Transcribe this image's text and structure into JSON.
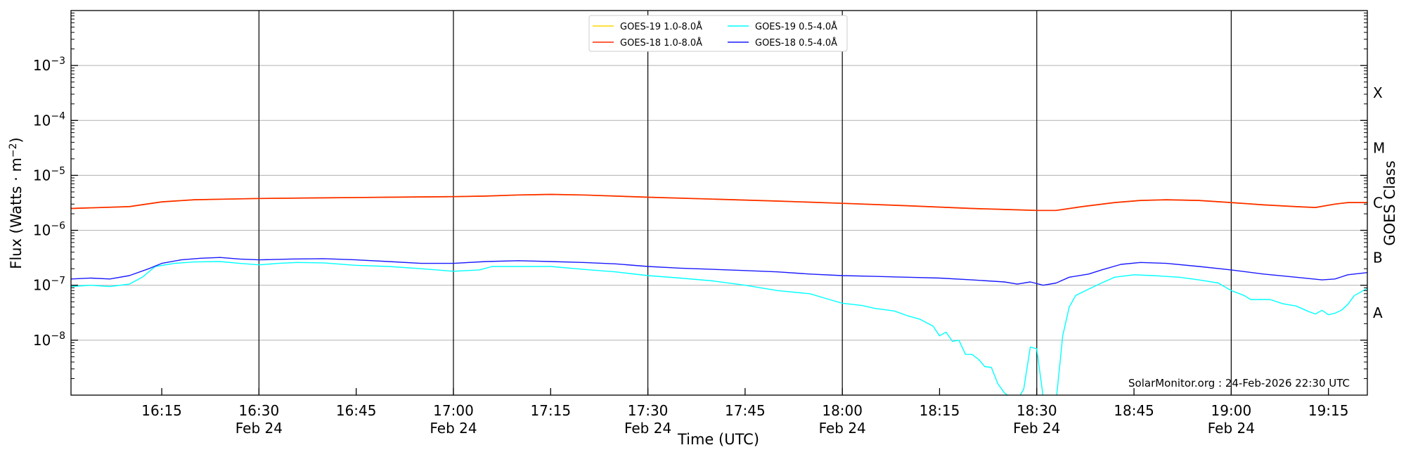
{
  "chart_data": {
    "type": "line",
    "title": "",
    "xlabel": "Time (UTC)",
    "ylabel": "Flux (Watts · m⁻²)",
    "y2label": "GOES Class",
    "yscale": "log",
    "xlim": [
      "16:01",
      "19:21"
    ],
    "ylim": [
      1e-09,
      0.01
    ],
    "grid": "horizontal at decades; vertical lines every 30 min",
    "legend_position": "top-center",
    "watermark": "SolarMonitor.org : 24-Feb-2026 22:30 UTC",
    "x_ticks": [
      {
        "t": "16:15",
        "label": "16:15",
        "sub": ""
      },
      {
        "t": "16:30",
        "label": "16:30",
        "sub": "Feb 24"
      },
      {
        "t": "16:45",
        "label": "16:45",
        "sub": ""
      },
      {
        "t": "17:00",
        "label": "17:00",
        "sub": "Feb 24"
      },
      {
        "t": "17:15",
        "label": "17:15",
        "sub": ""
      },
      {
        "t": "17:30",
        "label": "17:30",
        "sub": "Feb 24"
      },
      {
        "t": "17:45",
        "label": "17:45",
        "sub": ""
      },
      {
        "t": "18:00",
        "label": "18:00",
        "sub": "Feb 24"
      },
      {
        "t": "18:15",
        "label": "18:15",
        "sub": ""
      },
      {
        "t": "18:30",
        "label": "18:30",
        "sub": "Feb 24"
      },
      {
        "t": "18:45",
        "label": "18:45",
        "sub": ""
      },
      {
        "t": "19:00",
        "label": "19:00",
        "sub": "Feb 24"
      },
      {
        "t": "19:15",
        "label": "19:15",
        "sub": ""
      }
    ],
    "y_ticks": [
      {
        "value": 1e-08,
        "exp": "−8"
      },
      {
        "value": 1e-07,
        "exp": "−7"
      },
      {
        "value": 1e-06,
        "exp": "−6"
      },
      {
        "value": 1e-05,
        "exp": "−5"
      },
      {
        "value": 0.0001,
        "exp": "−4"
      },
      {
        "value": 0.001,
        "exp": "−3"
      }
    ],
    "goes_classes": [
      {
        "label": "A",
        "value": 3.16e-08
      },
      {
        "label": "B",
        "value": 3.16e-07
      },
      {
        "label": "C",
        "value": 3.16e-06
      },
      {
        "label": "M",
        "value": 3.16e-05
      },
      {
        "label": "X",
        "value": 0.000316
      }
    ],
    "series": [
      {
        "name": "GOES-19 1.0-8.0Å",
        "color": "#ffd700",
        "points": [
          [
            "16:01",
            2.5e-06
          ],
          [
            "16:10",
            2.7e-06
          ],
          [
            "16:15",
            3.3e-06
          ],
          [
            "16:20",
            3.6e-06
          ],
          [
            "16:25",
            3.7e-06
          ],
          [
            "16:30",
            3.8e-06
          ],
          [
            "16:40",
            3.9e-06
          ],
          [
            "16:50",
            4e-06
          ],
          [
            "17:00",
            4.1e-06
          ],
          [
            "17:05",
            4.2e-06
          ],
          [
            "17:10",
            4.4e-06
          ],
          [
            "17:15",
            4.5e-06
          ],
          [
            "17:20",
            4.4e-06
          ],
          [
            "17:30",
            4e-06
          ],
          [
            "17:40",
            3.7e-06
          ],
          [
            "17:50",
            3.4e-06
          ],
          [
            "18:00",
            3.1e-06
          ],
          [
            "18:10",
            2.8e-06
          ],
          [
            "18:20",
            2.5e-06
          ],
          [
            "18:25",
            2.4e-06
          ],
          [
            "18:30",
            2.3e-06
          ],
          [
            "18:33",
            2.3e-06
          ],
          [
            "18:37",
            2.7e-06
          ],
          [
            "18:42",
            3.2e-06
          ],
          [
            "18:46",
            3.5e-06
          ],
          [
            "18:50",
            3.6e-06
          ],
          [
            "18:55",
            3.5e-06
          ],
          [
            "19:00",
            3.2e-06
          ],
          [
            "19:05",
            2.9e-06
          ],
          [
            "19:10",
            2.7e-06
          ],
          [
            "19:13",
            2.6e-06
          ],
          [
            "19:16",
            3e-06
          ],
          [
            "19:18",
            3.2e-06
          ],
          [
            "19:21",
            3.2e-06
          ]
        ]
      },
      {
        "name": "GOES-18 1.0-8.0Å",
        "color": "#ff2a00",
        "points": [
          [
            "16:01",
            2.5e-06
          ],
          [
            "16:10",
            2.7e-06
          ],
          [
            "16:15",
            3.3e-06
          ],
          [
            "16:20",
            3.6e-06
          ],
          [
            "16:25",
            3.7e-06
          ],
          [
            "16:30",
            3.8e-06
          ],
          [
            "16:40",
            3.9e-06
          ],
          [
            "16:50",
            4e-06
          ],
          [
            "17:00",
            4.1e-06
          ],
          [
            "17:05",
            4.2e-06
          ],
          [
            "17:10",
            4.4e-06
          ],
          [
            "17:15",
            4.5e-06
          ],
          [
            "17:20",
            4.4e-06
          ],
          [
            "17:30",
            4e-06
          ],
          [
            "17:40",
            3.7e-06
          ],
          [
            "17:50",
            3.4e-06
          ],
          [
            "18:00",
            3.1e-06
          ],
          [
            "18:10",
            2.8e-06
          ],
          [
            "18:20",
            2.5e-06
          ],
          [
            "18:25",
            2.4e-06
          ],
          [
            "18:30",
            2.3e-06
          ],
          [
            "18:33",
            2.3e-06
          ],
          [
            "18:37",
            2.7e-06
          ],
          [
            "18:42",
            3.2e-06
          ],
          [
            "18:46",
            3.5e-06
          ],
          [
            "18:50",
            3.6e-06
          ],
          [
            "18:55",
            3.5e-06
          ],
          [
            "19:00",
            3.2e-06
          ],
          [
            "19:05",
            2.9e-06
          ],
          [
            "19:10",
            2.7e-06
          ],
          [
            "19:13",
            2.6e-06
          ],
          [
            "19:16",
            3e-06
          ],
          [
            "19:18",
            3.2e-06
          ],
          [
            "19:21",
            3.2e-06
          ]
        ]
      },
      {
        "name": "GOES-19 0.5-4.0Å",
        "color": "#00ffff",
        "points": [
          [
            "16:01",
            9.5e-08
          ],
          [
            "16:04",
            1e-07
          ],
          [
            "16:07",
            9.5e-08
          ],
          [
            "16:10",
            1.05e-07
          ],
          [
            "16:12",
            1.4e-07
          ],
          [
            "16:14",
            2.2e-07
          ],
          [
            "16:17",
            2.5e-07
          ],
          [
            "16:20",
            2.65e-07
          ],
          [
            "16:24",
            2.7e-07
          ],
          [
            "16:27",
            2.5e-07
          ],
          [
            "16:30",
            2.35e-07
          ],
          [
            "16:33",
            2.5e-07
          ],
          [
            "16:36",
            2.6e-07
          ],
          [
            "16:40",
            2.55e-07
          ],
          [
            "16:45",
            2.3e-07
          ],
          [
            "16:50",
            2.2e-07
          ],
          [
            "16:55",
            2e-07
          ],
          [
            "17:00",
            1.8e-07
          ],
          [
            "17:04",
            1.9e-07
          ],
          [
            "17:06",
            2.2e-07
          ],
          [
            "17:10",
            2.2e-07
          ],
          [
            "17:15",
            2.2e-07
          ],
          [
            "17:20",
            1.95e-07
          ],
          [
            "17:25",
            1.75e-07
          ],
          [
            "17:30",
            1.5e-07
          ],
          [
            "17:35",
            1.35e-07
          ],
          [
            "17:40",
            1.2e-07
          ],
          [
            "17:45",
            1e-07
          ],
          [
            "17:50",
            8e-08
          ],
          [
            "17:55",
            7e-08
          ],
          [
            "17:58",
            5.5e-08
          ],
          [
            "18:00",
            4.7e-08
          ],
          [
            "18:03",
            4.3e-08
          ],
          [
            "18:05",
            3.8e-08
          ],
          [
            "18:08",
            3.4e-08
          ],
          [
            "18:10",
            2.8e-08
          ],
          [
            "18:12",
            2.4e-08
          ],
          [
            "18:14",
            1.8e-08
          ],
          [
            "18:15",
            1.2e-08
          ],
          [
            "18:16",
            1.4e-08
          ],
          [
            "18:17",
            9.5e-09
          ],
          [
            "18:18",
            1e-08
          ],
          [
            "18:19",
            5.5e-09
          ],
          [
            "18:20",
            5.5e-09
          ],
          [
            "18:21",
            4.5e-09
          ],
          [
            "18:22",
            3.3e-09
          ],
          [
            "18:23",
            3.2e-09
          ],
          [
            "18:24",
            1.6e-09
          ],
          [
            "18:25",
            1.1e-09
          ],
          [
            "18:26",
            9e-10
          ],
          [
            "18:27",
            8e-10
          ],
          [
            "18:28",
            1.3e-09
          ],
          [
            "18:29",
            7.5e-09
          ],
          [
            "18:30",
            7e-09
          ],
          [
            "18:31",
            9e-10
          ],
          [
            "18:32",
            8e-10
          ],
          [
            "18:33",
            8e-10
          ],
          [
            "18:34",
            1.2e-08
          ],
          [
            "18:35",
            4e-08
          ],
          [
            "18:36",
            6.5e-08
          ],
          [
            "18:38",
            8.5e-08
          ],
          [
            "18:40",
            1.1e-07
          ],
          [
            "18:42",
            1.4e-07
          ],
          [
            "18:45",
            1.55e-07
          ],
          [
            "18:48",
            1.5e-07
          ],
          [
            "18:52",
            1.4e-07
          ],
          [
            "18:55",
            1.25e-07
          ],
          [
            "18:58",
            1.1e-07
          ],
          [
            "19:00",
            8e-08
          ],
          [
            "19:02",
            6.5e-08
          ],
          [
            "19:03",
            5.5e-08
          ],
          [
            "19:06",
            5.5e-08
          ],
          [
            "19:08",
            4.6e-08
          ],
          [
            "19:10",
            4.2e-08
          ],
          [
            "19:12",
            3.3e-08
          ],
          [
            "19:13",
            3e-08
          ],
          [
            "19:14",
            3.5e-08
          ],
          [
            "19:15",
            2.9e-08
          ],
          [
            "19:16",
            3.1e-08
          ],
          [
            "19:17",
            3.5e-08
          ],
          [
            "19:18",
            4.5e-08
          ],
          [
            "19:19",
            6.5e-08
          ],
          [
            "19:21",
            8.8e-08
          ]
        ]
      },
      {
        "name": "GOES-18 0.5-4.0Å",
        "color": "#1a1aff",
        "points": [
          [
            "16:01",
            1.3e-07
          ],
          [
            "16:04",
            1.35e-07
          ],
          [
            "16:07",
            1.3e-07
          ],
          [
            "16:10",
            1.5e-07
          ],
          [
            "16:13",
            2e-07
          ],
          [
            "16:15",
            2.5e-07
          ],
          [
            "16:18",
            2.9e-07
          ],
          [
            "16:21",
            3.1e-07
          ],
          [
            "16:24",
            3.2e-07
          ],
          [
            "16:27",
            3e-07
          ],
          [
            "16:30",
            2.9e-07
          ],
          [
            "16:35",
            3e-07
          ],
          [
            "16:40",
            3.05e-07
          ],
          [
            "16:45",
            2.9e-07
          ],
          [
            "16:50",
            2.7e-07
          ],
          [
            "16:55",
            2.5e-07
          ],
          [
            "17:00",
            2.5e-07
          ],
          [
            "17:05",
            2.7e-07
          ],
          [
            "17:10",
            2.8e-07
          ],
          [
            "17:15",
            2.7e-07
          ],
          [
            "17:20",
            2.6e-07
          ],
          [
            "17:25",
            2.45e-07
          ],
          [
            "17:30",
            2.2e-07
          ],
          [
            "17:35",
            2.05e-07
          ],
          [
            "17:40",
            1.95e-07
          ],
          [
            "17:45",
            1.85e-07
          ],
          [
            "17:50",
            1.75e-07
          ],
          [
            "17:55",
            1.6e-07
          ],
          [
            "18:00",
            1.5e-07
          ],
          [
            "18:05",
            1.45e-07
          ],
          [
            "18:10",
            1.4e-07
          ],
          [
            "18:15",
            1.35e-07
          ],
          [
            "18:20",
            1.25e-07
          ],
          [
            "18:25",
            1.15e-07
          ],
          [
            "18:27",
            1.05e-07
          ],
          [
            "18:29",
            1.15e-07
          ],
          [
            "18:31",
            1e-07
          ],
          [
            "18:33",
            1.1e-07
          ],
          [
            "18:35",
            1.4e-07
          ],
          [
            "18:38",
            1.6e-07
          ],
          [
            "18:40",
            1.9e-07
          ],
          [
            "18:43",
            2.4e-07
          ],
          [
            "18:46",
            2.6e-07
          ],
          [
            "18:50",
            2.5e-07
          ],
          [
            "18:55",
            2.2e-07
          ],
          [
            "19:00",
            1.9e-07
          ],
          [
            "19:05",
            1.6e-07
          ],
          [
            "19:10",
            1.4e-07
          ],
          [
            "19:14",
            1.25e-07
          ],
          [
            "19:16",
            1.3e-07
          ],
          [
            "19:18",
            1.55e-07
          ],
          [
            "19:21",
            1.7e-07
          ]
        ]
      }
    ]
  }
}
